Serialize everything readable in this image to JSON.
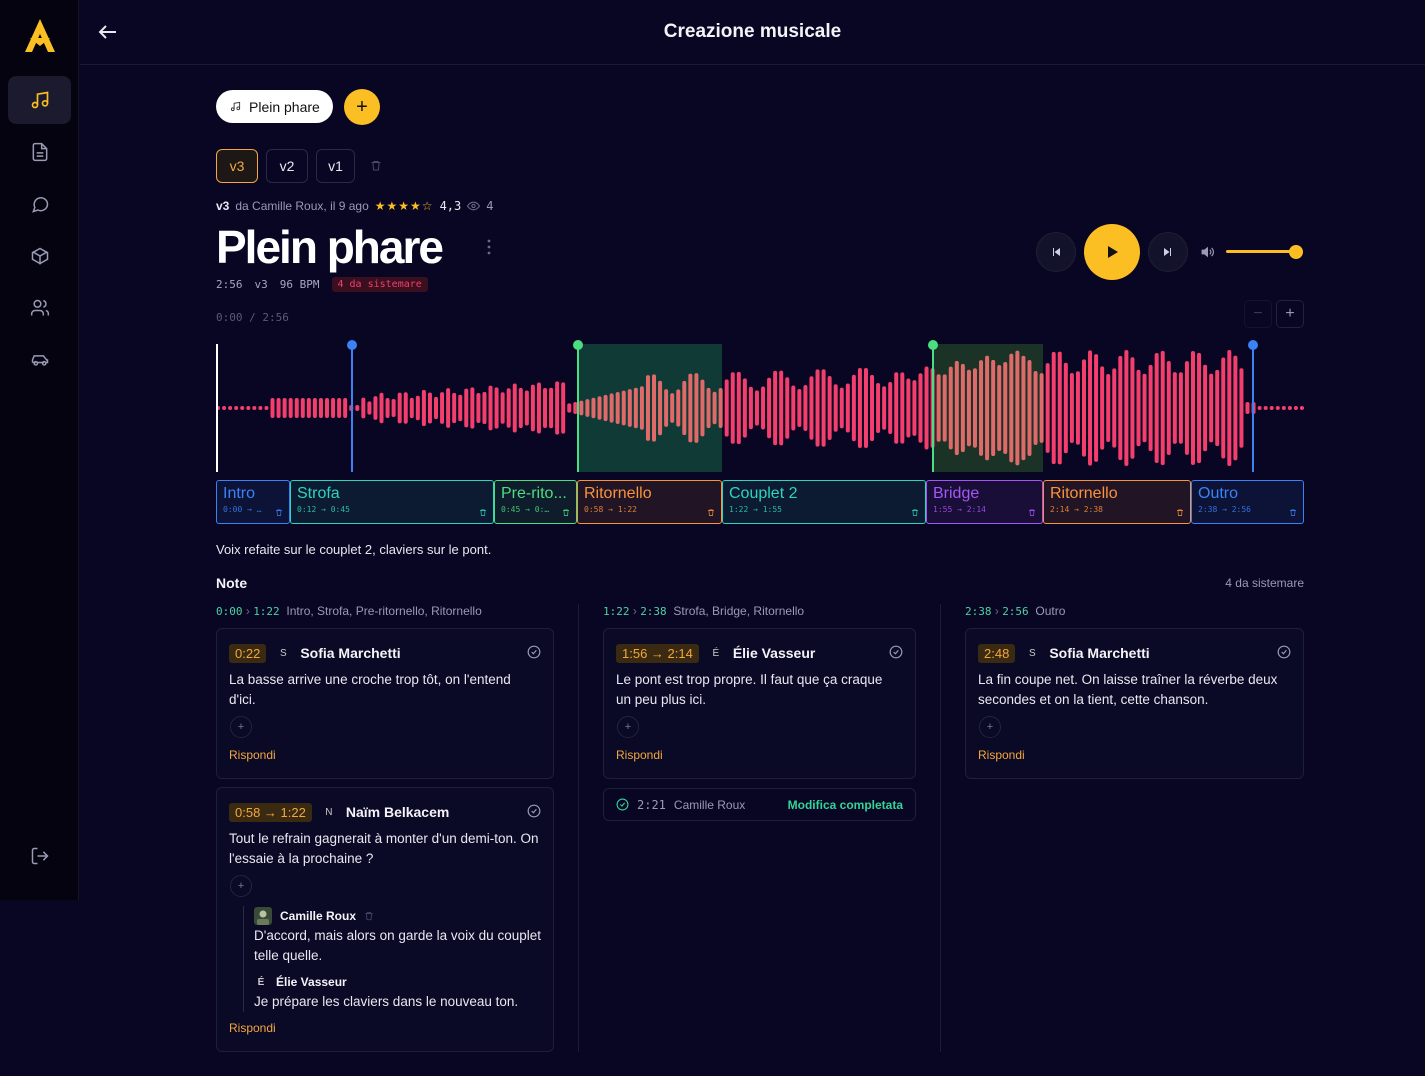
{
  "header": {
    "title": "Creazione musicale"
  },
  "sidebar": {
    "items": [
      "music",
      "document",
      "chat",
      "box",
      "users",
      "car"
    ]
  },
  "song_chip": {
    "label": "Plein phare"
  },
  "versions": {
    "items": [
      "v3",
      "v2",
      "v1"
    ],
    "active": "v3"
  },
  "meta": {
    "version": "v3",
    "by": "da Camille Roux, il 9 ago",
    "stars": "★★★★☆",
    "rating": "4,3",
    "views": "4"
  },
  "song": {
    "title": "Plein phare",
    "duration": "2:56",
    "version": "v3",
    "bpm": "96 BPM",
    "todo": "4 da sistemare"
  },
  "player": {
    "position": "0:00",
    "total": "2:56",
    "volume": 1.0
  },
  "segments": [
    {
      "name": "Intro",
      "time": "0:00 → …",
      "color": "#3b82f6"
    },
    {
      "name": "Strofa",
      "time": "0:12 → 0:45",
      "color": "#2dd4bf"
    },
    {
      "name": "Pre-rito...",
      "time": "0:45 → 0:…",
      "color": "#4ade80"
    },
    {
      "name": "Ritornello",
      "time": "0:58 → 1:22",
      "color": "#fb923c"
    },
    {
      "name": "Couplet 2",
      "time": "1:22 → 1:55",
      "color": "#2dd4bf"
    },
    {
      "name": "Bridge",
      "time": "1:55 → 2:14",
      "color": "#a855f7"
    },
    {
      "name": "Ritornello",
      "time": "2:14 → 2:38",
      "color": "#fb923c"
    },
    {
      "name": "Outro",
      "time": "2:38 → 2:56",
      "color": "#3b82f6"
    }
  ],
  "description": "Voix refaite sur le couplet 2, claviers sur le pont.",
  "notes": {
    "heading": "Note",
    "count": "4 da sistemare",
    "columns": [
      {
        "start": "0:00",
        "end": "1:22",
        "sections": "Intro, Strofa, Pre-ritornello, Ritornello"
      },
      {
        "start": "1:22",
        "end": "2:38",
        "sections": "Strofa, Bridge, Ritornello"
      },
      {
        "start": "2:38",
        "end": "2:56",
        "sections": "Outro"
      }
    ],
    "cards": [
      {
        "time": "0:22",
        "initial": "S",
        "author": "Sofia Marchetti",
        "text": "La basse arrive une croche trop tôt, on l'entend d'ici.",
        "reply": "Rispondi"
      },
      {
        "time": "0:58 → 1:22",
        "initial": "N",
        "author": "Naïm Belkacem",
        "text": "Tout le refrain gagnerait à monter d'un demi-ton. On l'essaie à la prochaine ?",
        "reply": "Rispondi",
        "replies": [
          {
            "author": "Camille Roux",
            "text": "D'accord, mais alors on garde la voix du couplet telle quelle."
          },
          {
            "initial": "É",
            "author": "Élie Vasseur",
            "text": "Je prépare les claviers dans le nouveau ton."
          }
        ]
      },
      {
        "time": "1:56 → 2:14",
        "initial": "É",
        "author": "Élie Vasseur",
        "text": "Le pont est trop propre. Il faut que ça craque un peu plus ici.",
        "reply": "Rispondi"
      },
      {
        "time": "2:48",
        "initial": "S",
        "author": "Sofia Marchetti",
        "text": "La fin coupe net. On laisse traîner la réverbe deux secondes et on la tient, cette chanson.",
        "reply": "Rispondi"
      }
    ],
    "done": {
      "time": "2:21",
      "author": "Camille Roux",
      "label": "Modifica completata"
    }
  },
  "colors": {
    "accent": "#fbbf24",
    "wave": "#f43f6e",
    "bg": "#080622"
  }
}
